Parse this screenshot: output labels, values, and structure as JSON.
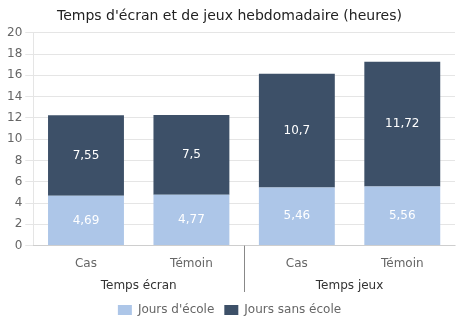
{
  "chart_data": {
    "type": "bar",
    "title": "Temps d'écran et de jeux hebdomadaire (heures)",
    "categories": [
      "Cas",
      "Témoin",
      "Cas",
      "Témoin"
    ],
    "groups": [
      "Temps écran",
      "Temps jeux"
    ],
    "series": [
      {
        "name": "Jours d'école",
        "color": "#adc6e8",
        "values": [
          4.69,
          4.77,
          5.46,
          5.56
        ],
        "value_labels": [
          "4,69",
          "4,77",
          "5,46",
          "5,56"
        ]
      },
      {
        "name": "Jours sans école",
        "color": "#3d5068",
        "values": [
          7.55,
          7.5,
          10.7,
          11.72
        ],
        "value_labels": [
          "7,55",
          "7,5",
          "10,7",
          "11,72"
        ]
      }
    ],
    "stacked": true,
    "data_labels": true,
    "ylim": [
      0,
      20
    ],
    "yticks": [
      0,
      2,
      4,
      6,
      8,
      10,
      12,
      14,
      16,
      18,
      20
    ],
    "grid": true,
    "legend": "bottom"
  }
}
